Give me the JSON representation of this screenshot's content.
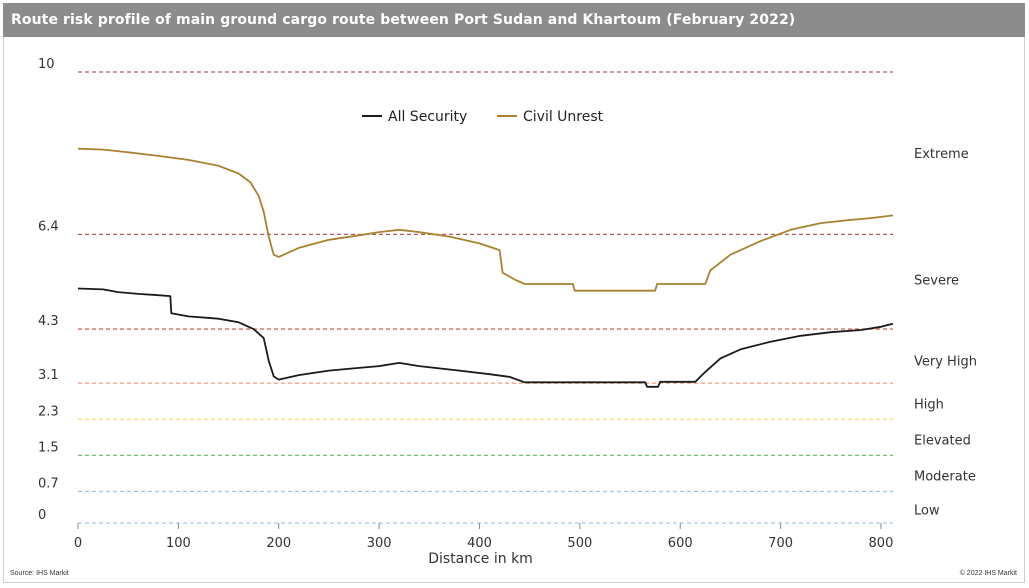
{
  "title": "Route risk profile  of main ground cargo route between Port Sudan and Khartoum  (February  2022)",
  "footer": {
    "source": "Source: IHS Markit",
    "copyright": "© 2022 IHS Markit"
  },
  "chart_data": {
    "type": "line",
    "title": "Route risk profile  of main ground cargo route between Port Sudan and Khartoum  (February  2022)",
    "xlabel": "Distance in km",
    "ylabel": "",
    "xlim": [
      0,
      812
    ],
    "ylim": [
      0,
      10
    ],
    "x_ticks": [
      0,
      100,
      200,
      300,
      400,
      500,
      600,
      700,
      800
    ],
    "y_ticks": [
      {
        "value": 10,
        "label": "10",
        "color": "#b45a5a"
      },
      {
        "value": 6.4,
        "label": "6.4",
        "color": "#b45a5a"
      },
      {
        "value": 4.3,
        "label": "4.3",
        "color": "#d06a5a"
      },
      {
        "value": 3.1,
        "label": "3.1",
        "color": "#f4a58a"
      },
      {
        "value": 2.3,
        "label": "2.3",
        "color": "#f0e060"
      },
      {
        "value": 1.5,
        "label": "1.5",
        "color": "#70c070"
      },
      {
        "value": 0.7,
        "label": "0.7",
        "color": "#a8c8e8"
      },
      {
        "value": 0,
        "label": "0",
        "color": "#a8c8e8"
      }
    ],
    "risk_bands": [
      {
        "label": "Extreme",
        "value": 8.2
      },
      {
        "label": "Severe",
        "value": 5.4
      },
      {
        "label": "Very High",
        "value": 3.6
      },
      {
        "label": "High",
        "value": 2.65
      },
      {
        "label": "Elevated",
        "value": 1.85
      },
      {
        "label": "Moderate",
        "value": 1.05
      },
      {
        "label": "Low",
        "value": 0.3
      }
    ],
    "legend": [
      {
        "name": "All Security",
        "color": "#1a1a1a"
      },
      {
        "name": "Civil Unrest",
        "color": "#a8822e"
      }
    ],
    "series": [
      {
        "name": "All Security",
        "color": "#1a1a1a",
        "points": [
          [
            0,
            5.2
          ],
          [
            25,
            5.18
          ],
          [
            40,
            5.12
          ],
          [
            60,
            5.08
          ],
          [
            80,
            5.05
          ],
          [
            92,
            5.03
          ],
          [
            93,
            4.65
          ],
          [
            110,
            4.58
          ],
          [
            140,
            4.53
          ],
          [
            160,
            4.45
          ],
          [
            175,
            4.3
          ],
          [
            185,
            4.1
          ],
          [
            190,
            3.6
          ],
          [
            195,
            3.25
          ],
          [
            200,
            3.18
          ],
          [
            220,
            3.28
          ],
          [
            250,
            3.38
          ],
          [
            280,
            3.44
          ],
          [
            300,
            3.48
          ],
          [
            320,
            3.55
          ],
          [
            340,
            3.48
          ],
          [
            380,
            3.38
          ],
          [
            410,
            3.3
          ],
          [
            430,
            3.24
          ],
          [
            445,
            3.12
          ],
          [
            475,
            3.12
          ],
          [
            500,
            3.12
          ],
          [
            540,
            3.12
          ],
          [
            565,
            3.12
          ],
          [
            567,
            3.02
          ],
          [
            578,
            3.02
          ],
          [
            580,
            3.13
          ],
          [
            615,
            3.13
          ],
          [
            625,
            3.35
          ],
          [
            640,
            3.65
          ],
          [
            660,
            3.85
          ],
          [
            690,
            4.02
          ],
          [
            720,
            4.15
          ],
          [
            750,
            4.23
          ],
          [
            780,
            4.28
          ],
          [
            800,
            4.35
          ],
          [
            812,
            4.42
          ]
        ]
      },
      {
        "name": "Civil Unrest",
        "color": "#a8822e",
        "points": [
          [
            0,
            8.3
          ],
          [
            25,
            8.28
          ],
          [
            50,
            8.22
          ],
          [
            80,
            8.14
          ],
          [
            110,
            8.05
          ],
          [
            140,
            7.92
          ],
          [
            160,
            7.75
          ],
          [
            172,
            7.55
          ],
          [
            180,
            7.25
          ],
          [
            185,
            6.9
          ],
          [
            190,
            6.35
          ],
          [
            195,
            5.95
          ],
          [
            200,
            5.9
          ],
          [
            220,
            6.1
          ],
          [
            250,
            6.28
          ],
          [
            280,
            6.38
          ],
          [
            300,
            6.45
          ],
          [
            320,
            6.5
          ],
          [
            340,
            6.45
          ],
          [
            370,
            6.35
          ],
          [
            400,
            6.2
          ],
          [
            420,
            6.05
          ],
          [
            423,
            5.55
          ],
          [
            435,
            5.4
          ],
          [
            445,
            5.3
          ],
          [
            470,
            5.3
          ],
          [
            493,
            5.3
          ],
          [
            495,
            5.15
          ],
          [
            530,
            5.15
          ],
          [
            575,
            5.15
          ],
          [
            577,
            5.3
          ],
          [
            600,
            5.3
          ],
          [
            625,
            5.3
          ],
          [
            630,
            5.6
          ],
          [
            650,
            5.95
          ],
          [
            680,
            6.25
          ],
          [
            710,
            6.5
          ],
          [
            740,
            6.65
          ],
          [
            770,
            6.72
          ],
          [
            790,
            6.76
          ],
          [
            812,
            6.82
          ]
        ]
      }
    ]
  }
}
